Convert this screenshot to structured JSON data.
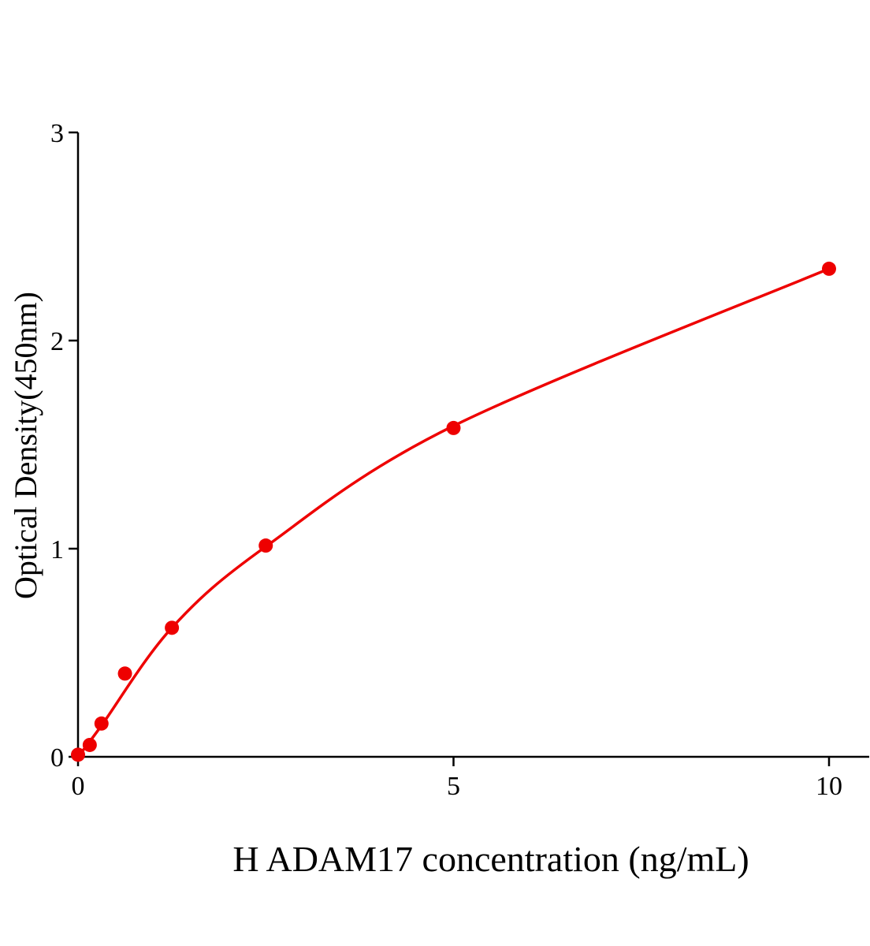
{
  "chart_data": {
    "type": "scatter",
    "title": "",
    "xlabel": "H ADAM17 concentration (ng/mL)",
    "ylabel": "Optical Density(450nm)",
    "xlim": [
      0,
      10.5
    ],
    "ylim": [
      0,
      3
    ],
    "xticks": [
      0,
      5,
      10
    ],
    "yticks": [
      0,
      1,
      2,
      3
    ],
    "grid": false,
    "color": "#ee0000",
    "series": [
      {
        "points": [
          {
            "x": 0,
            "y": 0.01
          },
          {
            "x": 0.156,
            "y": 0.057
          },
          {
            "x": 0.3125,
            "y": 0.16
          },
          {
            "x": 0.625,
            "y": 0.4
          },
          {
            "x": 1.25,
            "y": 0.62
          },
          {
            "x": 2.5,
            "y": 1.015
          },
          {
            "x": 5,
            "y": 1.58
          },
          {
            "x": 10,
            "y": 2.345
          }
        ],
        "fit_curve": [
          {
            "x": 0,
            "y": 0
          },
          {
            "x": 0.3125,
            "y": 0.15
          },
          {
            "x": 1.25,
            "y": 0.62
          },
          {
            "x": 2.5,
            "y": 1.01
          },
          {
            "x": 5,
            "y": 1.59
          },
          {
            "x": 10,
            "y": 2.345
          }
        ]
      }
    ]
  }
}
